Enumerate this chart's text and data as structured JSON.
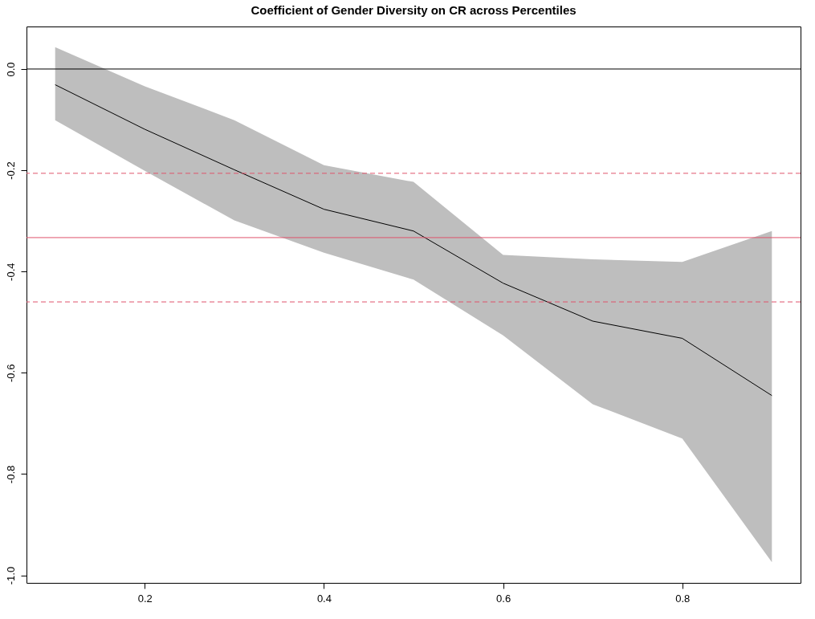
{
  "chart_data": {
    "type": "line",
    "title": "Coefficient of Gender Diversity on CR across Percentiles",
    "x": [
      0.1,
      0.2,
      0.3,
      0.4,
      0.5,
      0.6,
      0.7,
      0.8,
      0.9
    ],
    "series": [
      {
        "color": "#000000",
        "values": [
          -0.031,
          -0.119,
          -0.199,
          -0.277,
          -0.32,
          -0.423,
          -0.498,
          -0.532,
          -0.645
        ],
        "lower": [
          -0.101,
          -0.201,
          -0.299,
          -0.363,
          -0.416,
          -0.526,
          -0.662,
          -0.73,
          -0.974
        ],
        "upper": [
          0.043,
          -0.034,
          -0.101,
          -0.19,
          -0.223,
          -0.367,
          -0.376,
          -0.381,
          -0.32
        ]
      }
    ],
    "xlim": [
      0.068,
      0.932
    ],
    "ylim": [
      -1.015,
      0.084
    ],
    "xticks": [
      0.2,
      0.4,
      0.6,
      0.8
    ],
    "yticks": [
      {
        "value": -1,
        "label": "-1.0"
      },
      -0.8,
      -0.6,
      -0.4,
      -0.2,
      {
        "value": 0,
        "label": "0.0"
      }
    ],
    "ref_lines": [
      {
        "axis": "y",
        "value": 0,
        "color": "#000000",
        "line_style": "solid"
      },
      {
        "axis": "y",
        "value": -0.206,
        "color": "#df536b",
        "line_style": "dashed"
      },
      {
        "axis": "y",
        "value": -0.333,
        "color": "#df536b",
        "line_style": "solid"
      },
      {
        "axis": "y",
        "value": -0.46,
        "color": "#df536b",
        "line_style": "dashed"
      }
    ],
    "marker": "none",
    "line_style": "solid",
    "grid": false
  }
}
